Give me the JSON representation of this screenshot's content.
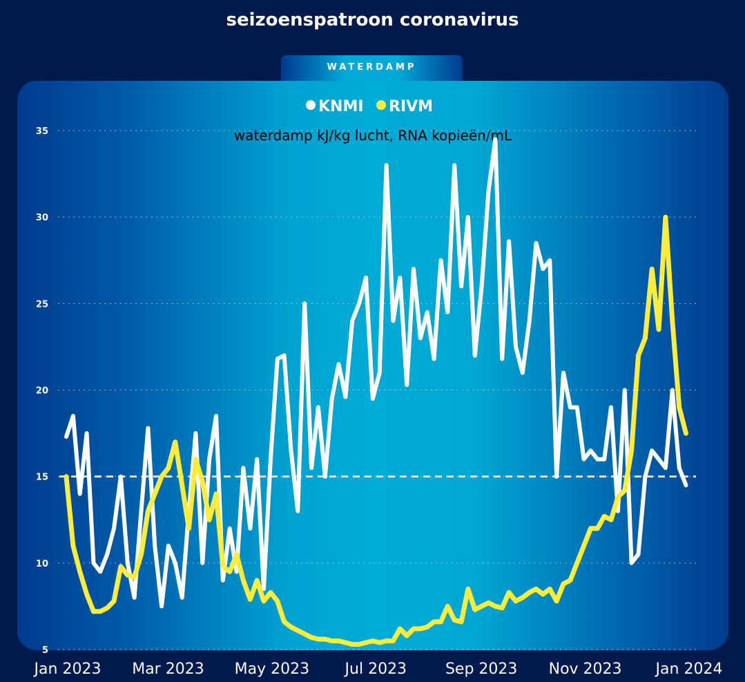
{
  "title": "seizoenspatroon coronavirus",
  "tab": {
    "label": "WATERDAMP",
    "active": true
  },
  "colors": {
    "background": "#001a4d",
    "knmi": "#ffffff",
    "rivm": "#ffec3d",
    "reference_line": "#dddddd"
  },
  "chart_data": {
    "type": "line",
    "subtitle": "waterdamp kJ/kg lucht, RNA kopieën/mL",
    "legend": {
      "position": "top-center",
      "entries": [
        {
          "name": "KNMI",
          "color": "#ffffff"
        },
        {
          "name": "RIVM",
          "color": "#ffec3d"
        }
      ]
    },
    "ylim": [
      5,
      35
    ],
    "yticks": [
      "5",
      "10",
      "15",
      "20",
      "25",
      "30",
      "35"
    ],
    "xlim": [
      "2023-01-01",
      "2024-01-01"
    ],
    "xticks": [
      {
        "date": "2023-01-01",
        "label": "Jan 2023"
      },
      {
        "date": "2023-03-01",
        "label": "Mar 2023"
      },
      {
        "date": "2023-05-01",
        "label": "May 2023"
      },
      {
        "date": "2023-07-01",
        "label": "Jul 2023"
      },
      {
        "date": "2023-09-01",
        "label": "Sep 2023"
      },
      {
        "date": "2023-11-01",
        "label": "Nov 2023"
      },
      {
        "date": "2024-01-01",
        "label": "Jan 2024"
      }
    ],
    "grid": "horizontal dotted",
    "reference_line": {
      "y": 15,
      "style": "dashed"
    },
    "x": [
      "2023-01-01",
      "2023-01-05",
      "2023-01-09",
      "2023-01-13",
      "2023-01-17",
      "2023-01-21",
      "2023-01-25",
      "2023-01-29",
      "2023-02-02",
      "2023-02-06",
      "2023-02-10",
      "2023-02-14",
      "2023-02-18",
      "2023-02-22",
      "2023-02-26",
      "2023-03-02",
      "2023-03-06",
      "2023-03-10",
      "2023-03-14",
      "2023-03-18",
      "2023-03-22",
      "2023-03-26",
      "2023-03-30",
      "2023-04-03",
      "2023-04-07",
      "2023-04-11",
      "2023-04-15",
      "2023-04-19",
      "2023-04-23",
      "2023-04-27",
      "2023-05-01",
      "2023-05-05",
      "2023-05-09",
      "2023-05-13",
      "2023-05-17",
      "2023-05-21",
      "2023-05-25",
      "2023-05-29",
      "2023-06-02",
      "2023-06-06",
      "2023-06-10",
      "2023-06-14",
      "2023-06-18",
      "2023-06-22",
      "2023-06-26",
      "2023-06-30",
      "2023-07-04",
      "2023-07-08",
      "2023-07-12",
      "2023-07-16",
      "2023-07-20",
      "2023-07-24",
      "2023-07-28",
      "2023-08-01",
      "2023-08-05",
      "2023-08-09",
      "2023-08-13",
      "2023-08-17",
      "2023-08-21",
      "2023-08-25",
      "2023-08-29",
      "2023-09-02",
      "2023-09-06",
      "2023-09-10",
      "2023-09-14",
      "2023-09-18",
      "2023-09-22",
      "2023-09-26",
      "2023-09-30",
      "2023-10-04",
      "2023-10-08",
      "2023-10-12",
      "2023-10-16",
      "2023-10-20",
      "2023-10-24",
      "2023-10-28",
      "2023-11-01",
      "2023-11-05",
      "2023-11-09",
      "2023-11-13",
      "2023-11-17",
      "2023-11-21",
      "2023-11-25",
      "2023-11-29",
      "2023-12-03",
      "2023-12-07",
      "2023-12-11",
      "2023-12-15",
      "2023-12-19",
      "2023-12-23",
      "2023-12-27",
      "2023-12-31"
    ],
    "series": [
      {
        "name": "KNMI",
        "color": "#ffffff",
        "values": [
          17.3,
          18.5,
          14,
          17.5,
          10,
          9.5,
          10.5,
          12,
          15,
          10,
          8,
          13,
          17.8,
          11,
          7.5,
          11,
          10,
          8,
          13,
          17.5,
          10,
          16,
          18.5,
          9,
          12,
          9.5,
          15.5,
          12,
          16,
          8.5,
          16,
          21.8,
          22,
          16.5,
          13,
          25,
          15.5,
          19,
          15,
          19.5,
          21.5,
          19.6,
          24,
          25,
          26.5,
          19.5,
          21,
          33,
          24,
          26.5,
          20.3,
          27,
          23,
          24.5,
          21.8,
          27.5,
          24.5,
          33,
          26,
          30,
          22,
          26,
          31.5,
          34.5,
          21.8,
          28.6,
          22.5,
          21,
          24,
          28.5,
          27,
          27.5,
          15,
          21,
          19,
          19,
          16,
          16.5,
          16,
          16,
          19,
          13,
          20,
          10,
          10.5,
          15,
          16.5,
          16,
          15.5,
          20,
          15.5,
          14.5
        ]
      },
      {
        "name": "RIVM",
        "color": "#ffec3d",
        "values": [
          15,
          11,
          9.5,
          8.2,
          7.2,
          7.2,
          7.4,
          7.8,
          9.8,
          9.3,
          9.2,
          10.5,
          13,
          14,
          15,
          15.5,
          17,
          14.5,
          12,
          16,
          14.7,
          12.5,
          14,
          9.8,
          9.5,
          10.5,
          9,
          7.9,
          9,
          7.8,
          8.3,
          7.8,
          6.6,
          6.3,
          6.1,
          5.9,
          5.7,
          5.6,
          5.6,
          5.5,
          5.5,
          5.4,
          5.3,
          5.3,
          5.4,
          5.5,
          5.4,
          5.5,
          5.5,
          6.2,
          5.8,
          6.2,
          6.2,
          6.3,
          6.6,
          6.6,
          7.5,
          6.7,
          6.6,
          8.5,
          7.3,
          7.5,
          7.7,
          7.5,
          7.4,
          8.3,
          7.8,
          8,
          8.3,
          8.5,
          8.2,
          8.5,
          7.8,
          8.8,
          9,
          10,
          11,
          12,
          12,
          12.7,
          12.5,
          13.8,
          14.2,
          16.5,
          22,
          23,
          27,
          23.5,
          30,
          24,
          19,
          17.5
        ]
      }
    ]
  }
}
